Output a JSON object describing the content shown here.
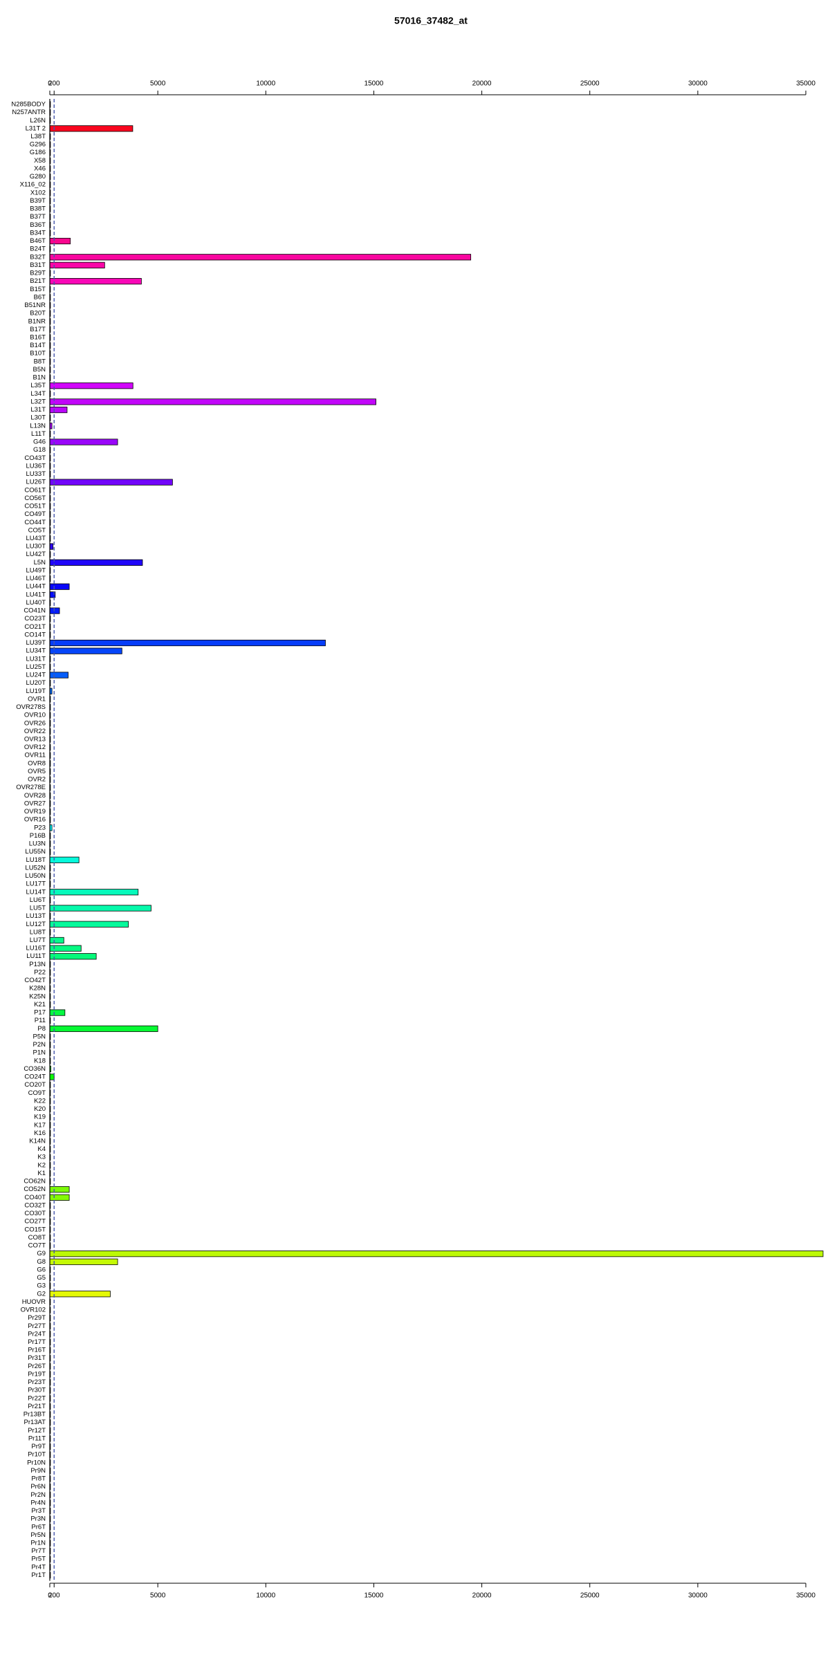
{
  "chart_data": {
    "type": "barh",
    "title": "57016_37482_at",
    "categories": [
      "N285BODY",
      "N257ANTR",
      "L26N",
      "L31T 2",
      "L38T",
      "G296",
      "G186",
      "X58",
      "X46",
      "G280",
      "X116_02",
      "X102",
      "B39T",
      "B38T",
      "B37T",
      "B36T",
      "B34T",
      "B46T",
      "B24T",
      "B32T",
      "B31T",
      "B29T",
      "B21T",
      "B15T",
      "B6T",
      "B51NR",
      "B20T",
      "B1NR",
      "B17T",
      "B16T",
      "B14T",
      "B10T",
      "B8T",
      "B5N",
      "B1N",
      "L35T",
      "L34T",
      "L32T",
      "L31T",
      "L30T",
      "L13N",
      "L11T",
      "G46",
      "G18",
      "CO43T",
      "LU36T",
      "LU33T",
      "LU26T",
      "CO61T",
      "CO56T",
      "CO51T",
      "CO49T",
      "CO44T",
      "CO5T",
      "LU43T",
      "LU30T",
      "LU42T",
      "L5N",
      "LU49T",
      "LU46T",
      "LU44T",
      "LU41T",
      "LU40T",
      "CO41N",
      "CO23T",
      "CO21T",
      "CO14T",
      "LU39T",
      "LU34T",
      "LU31T",
      "LU25T",
      "LU24T",
      "LU20T",
      "LU19T",
      "OVR1",
      "OVR278S",
      "OVR10",
      "OVR26",
      "OVR22",
      "OVR13",
      "OVR12",
      "OVR11",
      "OVR8",
      "OVR5",
      "OVR2",
      "OVR278E",
      "OVR28",
      "OVR27",
      "OVR19",
      "OVR16",
      "P23",
      "P16B",
      "LU3N",
      "LU55N",
      "LU18T",
      "LU52N",
      "LU50N",
      "LU17T",
      "LU14T",
      "LU6T",
      "LU5T",
      "LU13T",
      "LU12T",
      "LU8T",
      "LU7T",
      "LU16T",
      "LU11T",
      "P13N",
      "P22",
      "CO42T",
      "K28N",
      "K25N",
      "K21",
      "P17",
      "P11",
      "P8",
      "P5N",
      "P2N",
      "P1N",
      "K18",
      "CO36N",
      "CO24T",
      "CO20T",
      "CO9T",
      "K22",
      "K20",
      "K19",
      "K17",
      "K16",
      "K14N",
      "K4",
      "K3",
      "K2",
      "K1",
      "CO62N",
      "CO52N",
      "CO40T",
      "CO32T",
      "CO30T",
      "CO27T",
      "CO15T",
      "CO8T",
      "CO7T",
      "G9",
      "G8",
      "G6",
      "G5",
      "G3",
      "G2",
      "HUOVR",
      "OVR102",
      "Pr29T",
      "Pr27T",
      "Pr24T",
      "Pr17T",
      "Pr16T",
      "Pr31T",
      "Pr26T",
      "Pr19T",
      "Pr23T",
      "Pr30T",
      "Pr22T",
      "Pr21T",
      "Pr13BT",
      "Pr13AT",
      "Pr12T",
      "Pr11T",
      "Pr9T",
      "Pr10T",
      "Pr10N",
      "Pr9N",
      "Pr8T",
      "Pr6N",
      "Pr2N",
      "Pr4N",
      "Pr3T",
      "Pr3N",
      "Pr6T",
      "Pr5N",
      "Pr1N",
      "Pr7T",
      "Pr5T",
      "Pr4T",
      "Pr1T"
    ],
    "values": [
      30,
      30,
      30,
      3840,
      30,
      30,
      30,
      30,
      30,
      30,
      30,
      30,
      30,
      30,
      30,
      30,
      30,
      950,
      30,
      19490,
      2540,
      30,
      4240,
      30,
      30,
      30,
      30,
      30,
      30,
      30,
      30,
      30,
      30,
      30,
      30,
      3850,
      30,
      15100,
      800,
      30,
      100,
      30,
      3140,
      30,
      30,
      30,
      30,
      5680,
      30,
      30,
      30,
      30,
      30,
      30,
      30,
      150,
      30,
      4290,
      30,
      30,
      900,
      250,
      30,
      450,
      30,
      30,
      30,
      12760,
      3340,
      30,
      30,
      850,
      30,
      100,
      30,
      30,
      30,
      30,
      30,
      30,
      30,
      30,
      30,
      30,
      30,
      30,
      30,
      30,
      30,
      30,
      100,
      30,
      30,
      30,
      1350,
      30,
      30,
      30,
      4090,
      30,
      4690,
      30,
      3640,
      30,
      650,
      1450,
      2150,
      30,
      30,
      30,
      30,
      30,
      30,
      700,
      30,
      5000,
      30,
      30,
      30,
      30,
      50,
      200,
      30,
      30,
      30,
      30,
      30,
      30,
      30,
      30,
      30,
      30,
      30,
      30,
      30,
      900,
      900,
      30,
      30,
      30,
      30,
      30,
      30,
      35800,
      3140,
      30,
      30,
      30,
      2800,
      30,
      30,
      30,
      30,
      30,
      30,
      30,
      30,
      30,
      30,
      30,
      30,
      30,
      30,
      30,
      30,
      30,
      30,
      30,
      30,
      30,
      30,
      30,
      30,
      30,
      30,
      30,
      30,
      30,
      30,
      30,
      30,
      30,
      30,
      30
    ],
    "xlim": [
      0,
      35800
    ],
    "xticks": [
      0,
      200,
      5000,
      10000,
      15000,
      20000,
      25000,
      30000,
      35000
    ],
    "vlines": [
      0,
      200
    ]
  }
}
